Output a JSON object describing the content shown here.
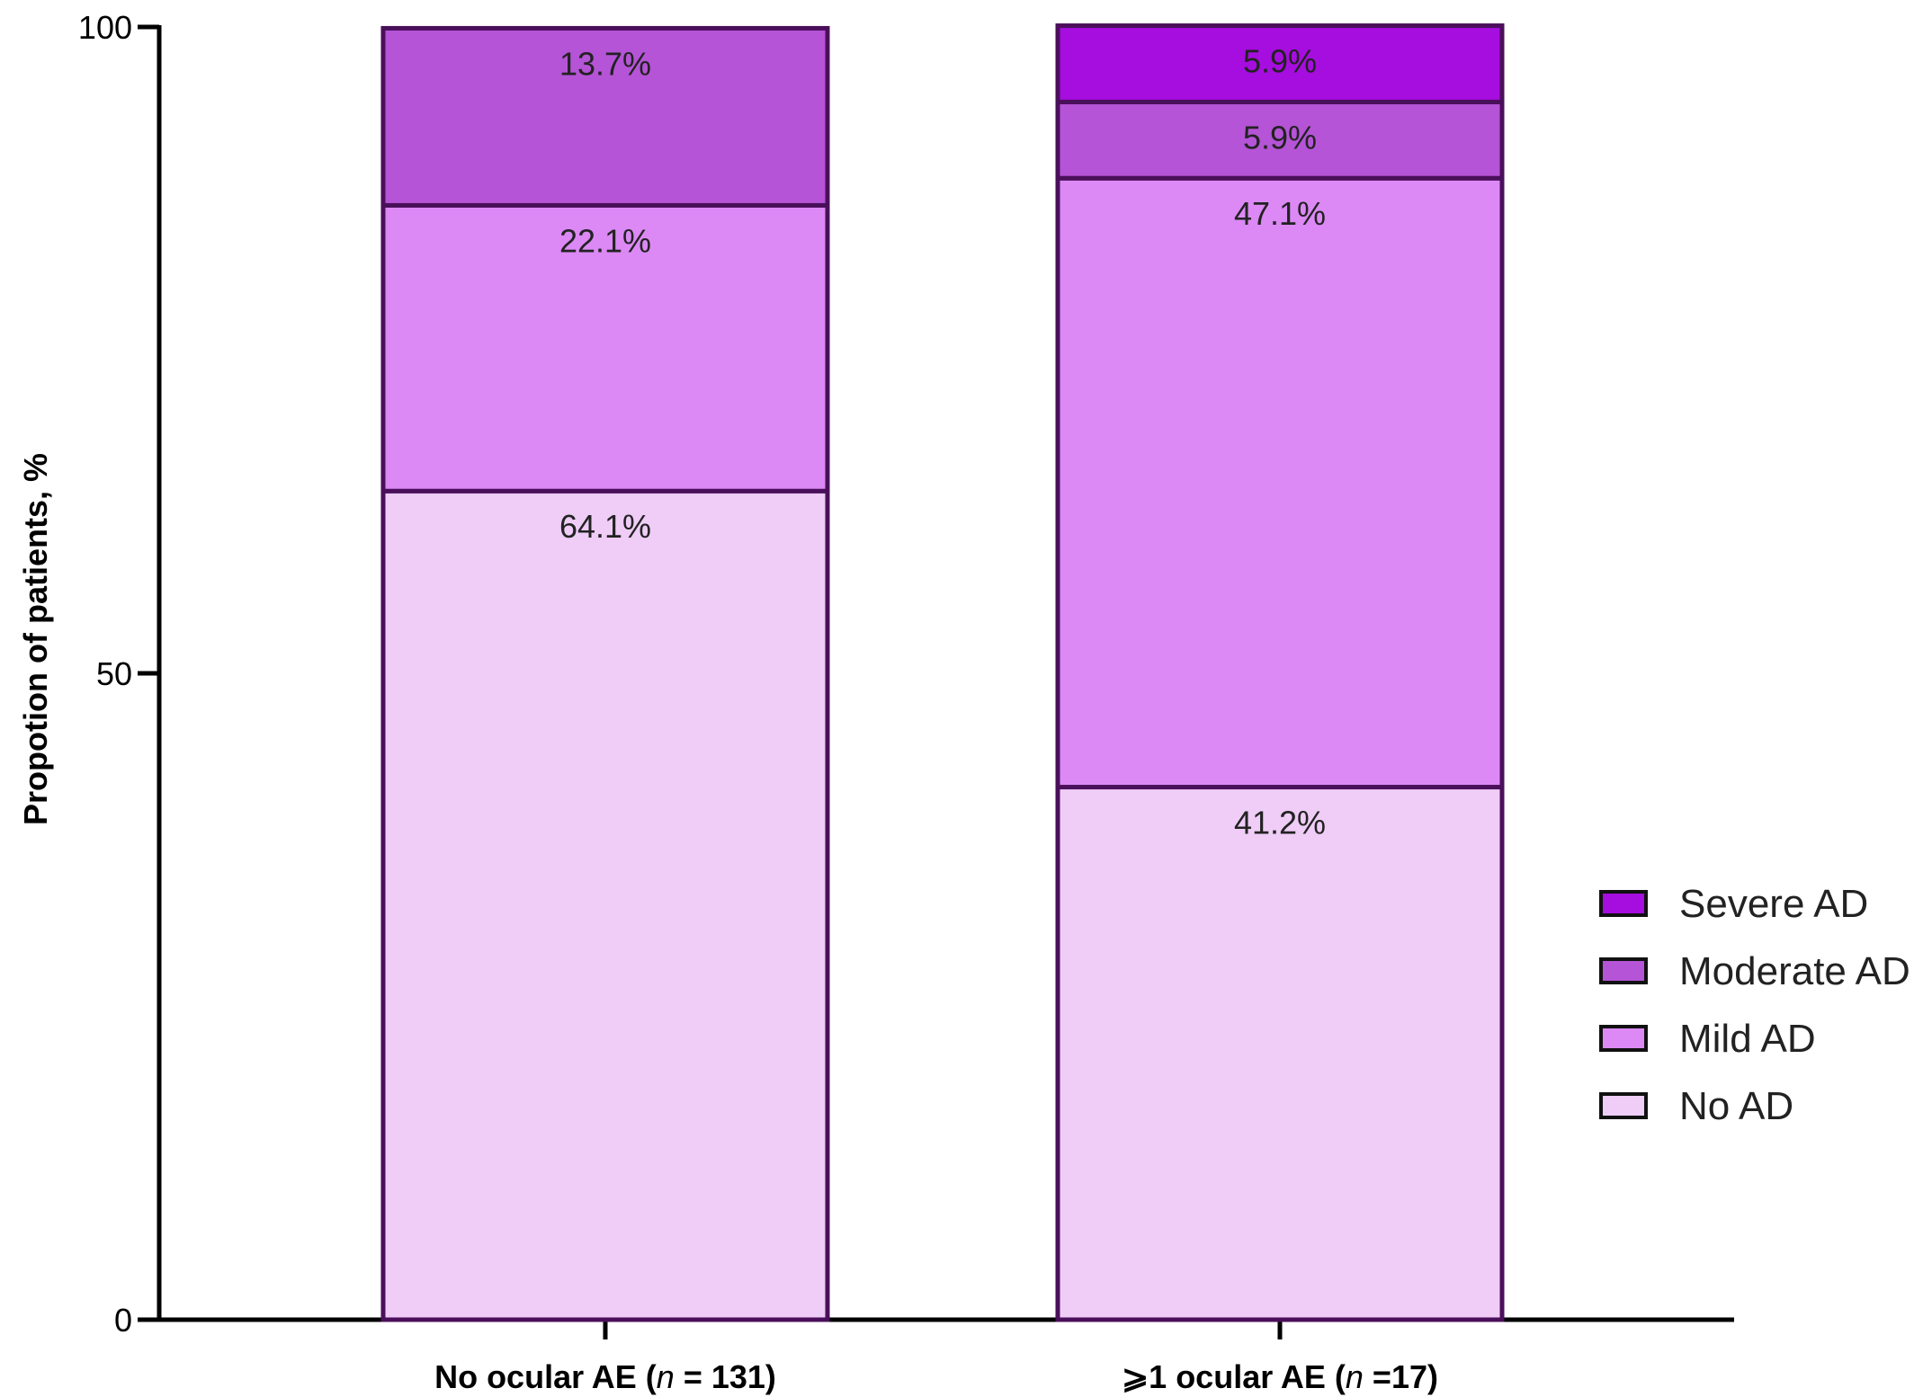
{
  "chart_data": {
    "type": "bar",
    "stacked": true,
    "ylabel": "Propotion of patients, %",
    "ylim": [
      0,
      100
    ],
    "yticks": [
      0,
      50,
      100
    ],
    "categories": [
      {
        "parts": [
          {
            "text": "No ocular AE (",
            "italic": false
          },
          {
            "text": "n",
            "italic": true
          },
          {
            "text": " = 131)",
            "italic": false
          }
        ]
      },
      {
        "parts": [
          {
            "text": "⩾1 ocular AE (",
            "italic": false
          },
          {
            "text": "n",
            "italic": true
          },
          {
            "text": " =17)",
            "italic": false
          }
        ]
      }
    ],
    "series": [
      {
        "name": "No AD",
        "color": "#efcdf7",
        "values": [
          64.1,
          41.2
        ],
        "labels": [
          "64.1%",
          "41.2%"
        ]
      },
      {
        "name": "Mild AD",
        "color": "#dc89f5",
        "values": [
          22.1,
          47.1
        ],
        "labels": [
          "22.1%",
          "47.1%"
        ]
      },
      {
        "name": "Moderate AD",
        "color": "#b554d6",
        "values": [
          13.7,
          5.9
        ],
        "labels": [
          "13.7%",
          "5.9%"
        ]
      },
      {
        "name": "Severe AD",
        "color": "#a60ddf",
        "values": [
          0,
          5.9
        ],
        "labels": [
          "",
          "5.9%"
        ]
      }
    ],
    "legend_order": [
      "Severe AD",
      "Moderate AD",
      "Mild AD",
      "No AD"
    ],
    "legend_position": "right",
    "bar_outline_color": "#4a0f5a",
    "grid": false
  }
}
